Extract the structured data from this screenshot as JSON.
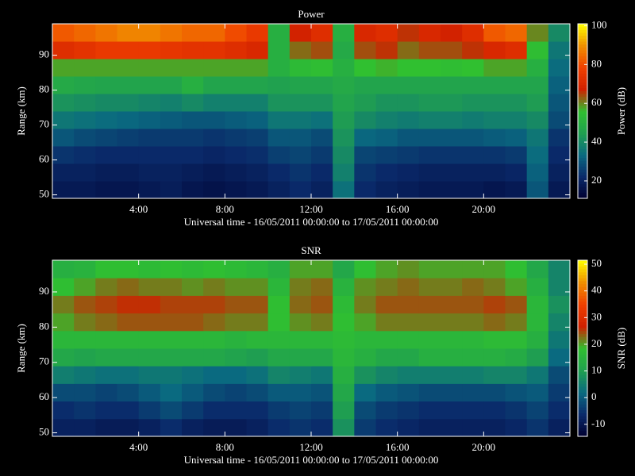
{
  "chart_data": [
    {
      "type": "heatmap",
      "title": "Power",
      "ylabel": "Range (km)",
      "xlabel": "Universal time - 16/05/2011 00:00:00 to 17/05/2011 00:00:00",
      "colorbar_label": "Power (dB)",
      "x": [
        0.5,
        1.5,
        2.5,
        3.5,
        4.5,
        5.5,
        6.5,
        7.5,
        8.5,
        9.5,
        10.5,
        11.5,
        12.5,
        13.5,
        14.5,
        15.5,
        16.5,
        17.5,
        18.5,
        19.5,
        20.5,
        21.5,
        22.5,
        23.5
      ],
      "y": [
        51.5,
        56.5,
        61.5,
        66.5,
        71.5,
        76.5,
        81.5,
        86.5,
        91.5,
        96.5
      ],
      "z": [
        [
          18,
          18,
          17,
          17,
          18,
          19,
          17,
          16,
          17,
          18,
          20,
          22,
          20,
          35,
          22,
          20,
          19,
          18,
          18,
          18,
          17,
          18,
          30,
          18
        ],
        [
          20,
          20,
          19,
          19,
          20,
          20,
          19,
          18,
          19,
          20,
          22,
          24,
          22,
          38,
          24,
          22,
          21,
          20,
          20,
          20,
          20,
          21,
          32,
          20
        ],
        [
          24,
          23,
          22,
          22,
          22,
          22,
          22,
          21,
          22,
          23,
          26,
          27,
          25,
          40,
          27,
          26,
          25,
          24,
          24,
          24,
          24,
          25,
          34,
          22
        ],
        [
          30,
          28,
          27,
          26,
          25,
          25,
          25,
          24,
          25,
          26,
          30,
          30,
          28,
          42,
          33,
          32,
          30,
          30,
          30,
          30,
          31,
          32,
          36,
          24
        ],
        [
          36,
          35,
          34,
          33,
          32,
          31,
          30,
          30,
          31,
          32,
          36,
          36,
          35,
          44,
          40,
          38,
          37,
          38,
          38,
          37,
          38,
          38,
          40,
          28
        ],
        [
          42,
          41,
          40,
          40,
          39,
          38,
          40,
          38,
          38,
          38,
          42,
          42,
          42,
          46,
          44,
          42,
          42,
          43,
          43,
          42,
          42,
          42,
          44,
          30
        ],
        [
          48,
          47,
          46,
          46,
          46,
          46,
          50,
          46,
          46,
          46,
          45,
          46,
          46,
          48,
          46,
          46,
          46,
          46,
          46,
          46,
          46,
          46,
          46,
          32
        ],
        [
          58,
          58,
          58,
          58,
          58,
          58,
          58,
          58,
          58,
          58,
          50,
          54,
          55,
          50,
          56,
          57,
          56,
          56,
          55,
          56,
          58,
          58,
          50,
          34
        ],
        [
          72,
          74,
          76,
          76,
          76,
          75,
          74,
          74,
          72,
          70,
          50,
          62,
          64,
          48,
          64,
          66,
          62,
          64,
          64,
          66,
          70,
          72,
          55,
          36
        ],
        [
          82,
          84,
          86,
          88,
          88,
          86,
          84,
          84,
          80,
          76,
          50,
          68,
          72,
          50,
          70,
          72,
          66,
          70,
          68,
          72,
          82,
          84,
          60,
          40
        ]
      ],
      "xlim": [
        0,
        24
      ],
      "ylim": [
        49,
        99
      ],
      "xticks": [
        {
          "value": 4,
          "label": "4:00"
        },
        {
          "value": 8,
          "label": "8:00"
        },
        {
          "value": 12,
          "label": "12:00"
        },
        {
          "value": 16,
          "label": "16:00"
        },
        {
          "value": 20,
          "label": "20:00"
        }
      ],
      "yticks": [
        50,
        60,
        70,
        80,
        90
      ],
      "clim": [
        11,
        101
      ],
      "cticks": [
        20,
        40,
        60,
        80,
        100
      ],
      "colormap": [
        "#000030",
        "#0a2a6a",
        "#0a6a80",
        "#20a050",
        "#30c030",
        "#d02000",
        "#f04000",
        "#f09000",
        "#ffff00"
      ]
    },
    {
      "type": "heatmap",
      "title": "SNR",
      "ylabel": "Range (km)",
      "xlabel": "Universal time - 16/05/2011 00:00:00 to 17/05/2011 00:00:00",
      "colorbar_label": "SNR (dB)",
      "x": [
        0.5,
        1.5,
        2.5,
        3.5,
        4.5,
        5.5,
        6.5,
        7.5,
        8.5,
        9.5,
        10.5,
        11.5,
        12.5,
        13.5,
        14.5,
        15.5,
        16.5,
        17.5,
        18.5,
        19.5,
        20.5,
        21.5,
        22.5,
        23.5
      ],
      "y": [
        51.5,
        56.5,
        61.5,
        66.5,
        71.5,
        76.5,
        81.5,
        86.5,
        91.5,
        96.5
      ],
      "z": [
        [
          -8,
          -8,
          -9,
          -9,
          -8,
          -6,
          -8,
          -9,
          -9,
          -8,
          -6,
          -5,
          -6,
          8,
          -4,
          -6,
          -7,
          -8,
          -8,
          -8,
          -8,
          -7,
          -5,
          -8
        ],
        [
          -6,
          -5,
          -6,
          -6,
          -4,
          -2,
          -4,
          -6,
          -6,
          -6,
          -4,
          -3,
          -4,
          10,
          -2,
          -4,
          -5,
          -6,
          -6,
          -6,
          -6,
          -5,
          -3,
          -6
        ],
        [
          -2,
          -2,
          -3,
          -2,
          0,
          2,
          0,
          -2,
          -3,
          -2,
          0,
          0,
          -1,
          12,
          2,
          0,
          -1,
          -2,
          -2,
          -2,
          -2,
          -1,
          0,
          -4
        ],
        [
          5,
          4,
          3,
          3,
          4,
          4,
          3,
          2,
          2,
          3,
          6,
          5,
          4,
          14,
          8,
          6,
          5,
          5,
          5,
          5,
          6,
          6,
          4,
          -2
        ],
        [
          12,
          11,
          12,
          12,
          12,
          12,
          12,
          12,
          11,
          10,
          12,
          12,
          12,
          16,
          14,
          12,
          12,
          14,
          14,
          14,
          14,
          13,
          10,
          2
        ],
        [
          16,
          16,
          16,
          16,
          16,
          16,
          16,
          16,
          15,
          16,
          16,
          16,
          16,
          17,
          16,
          16,
          16,
          16,
          16,
          16,
          17,
          17,
          14,
          4
        ],
        [
          20,
          22,
          23,
          24,
          24,
          24,
          24,
          23,
          22,
          22,
          18,
          21,
          22,
          18,
          20,
          22,
          22,
          22,
          22,
          22,
          23,
          22,
          16,
          6
        ],
        [
          22,
          24,
          25,
          26,
          26,
          25,
          25,
          25,
          24,
          24,
          18,
          23,
          24,
          17,
          22,
          24,
          24,
          24,
          24,
          24,
          25,
          24,
          16,
          8
        ],
        [
          18,
          20,
          22,
          23,
          22,
          22,
          21,
          22,
          21,
          21,
          16,
          22,
          23,
          15,
          21,
          22,
          23,
          22,
          22,
          23,
          22,
          20,
          14,
          6
        ],
        [
          14,
          15,
          18,
          18,
          17,
          18,
          17,
          18,
          17,
          16,
          14,
          20,
          20,
          12,
          18,
          20,
          21,
          20,
          20,
          20,
          20,
          18,
          12,
          6
        ]
      ],
      "xlim": [
        0,
        24
      ],
      "ylim": [
        49,
        99
      ],
      "xticks": [
        {
          "value": 4,
          "label": "4:00"
        },
        {
          "value": 8,
          "label": "8:00"
        },
        {
          "value": 12,
          "label": "12:00"
        },
        {
          "value": 16,
          "label": "16:00"
        },
        {
          "value": 20,
          "label": "20:00"
        }
      ],
      "yticks": [
        50,
        60,
        70,
        80,
        90
      ],
      "clim": [
        -14.5,
        51.5
      ],
      "cticks": [
        -10,
        0,
        10,
        20,
        30,
        40,
        50
      ],
      "colormap": [
        "#000030",
        "#0a2a6a",
        "#0a6a80",
        "#20a050",
        "#30c030",
        "#d02000",
        "#f04000",
        "#f09000",
        "#ffff00"
      ]
    }
  ]
}
